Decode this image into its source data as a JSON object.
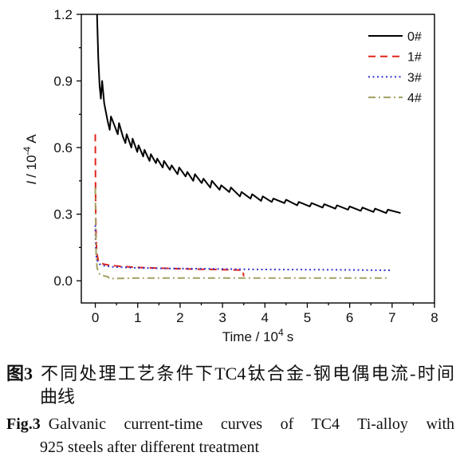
{
  "chart_data": {
    "type": "line",
    "xlabel": {
      "base": "Time / 10",
      "exp": "4",
      "unit": "s"
    },
    "ylabel": {
      "var": "I",
      "base": "/ 10",
      "exp": "-4",
      "unit": "A"
    },
    "xlim": [
      -0.33,
      8
    ],
    "ylim": [
      -0.1,
      1.2
    ],
    "xticks": [
      0,
      1,
      2,
      3,
      4,
      5,
      6,
      7,
      8
    ],
    "xtick_labels": [
      "0",
      "1",
      "2",
      "3",
      "4",
      "5",
      "6",
      "7",
      "8"
    ],
    "yticks": [
      0.0,
      0.3,
      0.6,
      0.9,
      1.2
    ],
    "ytick_labels": [
      "0.0",
      "0.3",
      "0.6",
      "0.9",
      "1.2"
    ],
    "grid": false,
    "legend_position": "top-right",
    "series": [
      {
        "name": "0#",
        "color": "#000000",
        "style": "solid",
        "points": [
          [
            0.04,
            1.2
          ],
          [
            0.07,
            1.0
          ],
          [
            0.1,
            0.88
          ],
          [
            0.13,
            0.82
          ],
          [
            0.16,
            0.9
          ],
          [
            0.21,
            0.8
          ],
          [
            0.29,
            0.72
          ],
          [
            0.34,
            0.68
          ],
          [
            0.37,
            0.74
          ],
          [
            0.45,
            0.7
          ],
          [
            0.53,
            0.66
          ],
          [
            0.56,
            0.71
          ],
          [
            0.65,
            0.65
          ],
          [
            0.71,
            0.62
          ],
          [
            0.74,
            0.66
          ],
          [
            0.85,
            0.6
          ],
          [
            0.88,
            0.64
          ],
          [
            0.99,
            0.58
          ],
          [
            1.02,
            0.61
          ],
          [
            1.13,
            0.56
          ],
          [
            1.16,
            0.59
          ],
          [
            1.28,
            0.54
          ],
          [
            1.31,
            0.57
          ],
          [
            1.43,
            0.53
          ],
          [
            1.46,
            0.55
          ],
          [
            1.59,
            0.51
          ],
          [
            1.62,
            0.54
          ],
          [
            1.76,
            0.5
          ],
          [
            1.8,
            0.52
          ],
          [
            1.94,
            0.48
          ],
          [
            1.98,
            0.51
          ],
          [
            2.13,
            0.47
          ],
          [
            2.17,
            0.49
          ],
          [
            2.31,
            0.45
          ],
          [
            2.35,
            0.48
          ],
          [
            2.51,
            0.44
          ],
          [
            2.55,
            0.46
          ],
          [
            2.71,
            0.42
          ],
          [
            2.75,
            0.45
          ],
          [
            2.93,
            0.41
          ],
          [
            2.97,
            0.43
          ],
          [
            3.16,
            0.4
          ],
          [
            3.2,
            0.42
          ],
          [
            3.41,
            0.38
          ],
          [
            3.45,
            0.4
          ],
          [
            3.66,
            0.37
          ],
          [
            3.7,
            0.39
          ],
          [
            3.91,
            0.36
          ],
          [
            3.95,
            0.38
          ],
          [
            4.16,
            0.355
          ],
          [
            4.2,
            0.37
          ],
          [
            4.46,
            0.35
          ],
          [
            4.5,
            0.365
          ],
          [
            4.76,
            0.34
          ],
          [
            4.8,
            0.355
          ],
          [
            5.06,
            0.335
          ],
          [
            5.1,
            0.35
          ],
          [
            5.36,
            0.33
          ],
          [
            5.4,
            0.345
          ],
          [
            5.66,
            0.325
          ],
          [
            5.7,
            0.34
          ],
          [
            5.96,
            0.32
          ],
          [
            6.0,
            0.335
          ],
          [
            6.26,
            0.315
          ],
          [
            6.3,
            0.33
          ],
          [
            6.56,
            0.31
          ],
          [
            6.6,
            0.325
          ],
          [
            6.86,
            0.305
          ],
          [
            6.9,
            0.32
          ],
          [
            7.2,
            0.305
          ]
        ]
      },
      {
        "name": "1#",
        "color": "#e2231a",
        "style": "dashed",
        "points": [
          [
            0.0,
            0.66
          ],
          [
            0.005,
            0.45
          ],
          [
            0.01,
            0.3
          ],
          [
            0.02,
            0.18
          ],
          [
            0.04,
            0.12
          ],
          [
            0.07,
            0.09
          ],
          [
            0.12,
            0.08
          ],
          [
            0.2,
            0.075
          ],
          [
            0.35,
            0.07
          ],
          [
            0.6,
            0.065
          ],
          [
            1.0,
            0.06
          ],
          [
            1.5,
            0.057
          ],
          [
            2.0,
            0.054
          ],
          [
            2.5,
            0.052
          ],
          [
            3.0,
            0.05
          ],
          [
            3.48,
            0.048
          ],
          [
            3.5,
            0.02
          ]
        ]
      },
      {
        "name": "3#",
        "color": "#3333cc",
        "style": "dotted",
        "points": [
          [
            0.0,
            0.25
          ],
          [
            0.01,
            0.15
          ],
          [
            0.03,
            0.1
          ],
          [
            0.06,
            0.085
          ],
          [
            0.1,
            0.075
          ],
          [
            0.2,
            0.068
          ],
          [
            0.4,
            0.063
          ],
          [
            0.7,
            0.06
          ],
          [
            1.0,
            0.058
          ],
          [
            1.5,
            0.056
          ],
          [
            2.0,
            0.055
          ],
          [
            3.0,
            0.053
          ],
          [
            4.0,
            0.051
          ],
          [
            5.0,
            0.05
          ],
          [
            6.0,
            0.049
          ],
          [
            7.0,
            0.047
          ]
        ]
      },
      {
        "name": "4#",
        "color": "#a3a062",
        "style": "dash-dot",
        "points": [
          [
            0.0,
            0.42
          ],
          [
            0.01,
            0.25
          ],
          [
            0.02,
            0.12
          ],
          [
            0.04,
            0.06
          ],
          [
            0.07,
            0.04
          ],
          [
            0.1,
            0.03
          ],
          [
            0.2,
            0.022
          ],
          [
            0.3,
            0.018
          ],
          [
            0.33,
            0.01
          ],
          [
            1.0,
            0.012
          ],
          [
            2.0,
            0.012
          ],
          [
            3.0,
            0.012
          ],
          [
            4.0,
            0.012
          ],
          [
            5.0,
            0.012
          ],
          [
            6.0,
            0.012
          ],
          [
            6.9,
            0.012
          ]
        ]
      }
    ]
  },
  "caption": {
    "cn": {
      "label": "图3",
      "lines": [
        "不同处理工艺条件下TC4钛合金-钢电偶电流-时间",
        "曲线"
      ]
    },
    "en": {
      "label": "Fig.3",
      "lines": [
        "Galvanic current-time curves of TC4 Ti-alloy with",
        "925 steels after different treatment"
      ]
    }
  }
}
